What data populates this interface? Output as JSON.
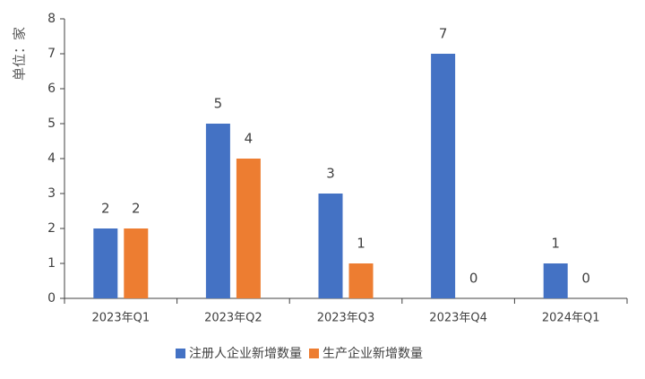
{
  "chart_data": {
    "type": "bar",
    "y_label": "单位：家",
    "categories": [
      "2023年Q1",
      "2023年Q2",
      "2023年Q3",
      "2023年Q4",
      "2024年Q1"
    ],
    "series": [
      {
        "name": "注册人企业新增数量",
        "color": "#4472c4",
        "values": [
          2,
          5,
          3,
          7,
          1
        ]
      },
      {
        "name": "生产企业新增数量",
        "color": "#ed7d31",
        "values": [
          2,
          4,
          1,
          0,
          0
        ]
      }
    ],
    "ylim": [
      0,
      8
    ],
    "yticks": [
      0,
      1,
      2,
      3,
      4,
      5,
      6,
      7,
      8
    ],
    "grid": false,
    "legend": "bottom"
  }
}
